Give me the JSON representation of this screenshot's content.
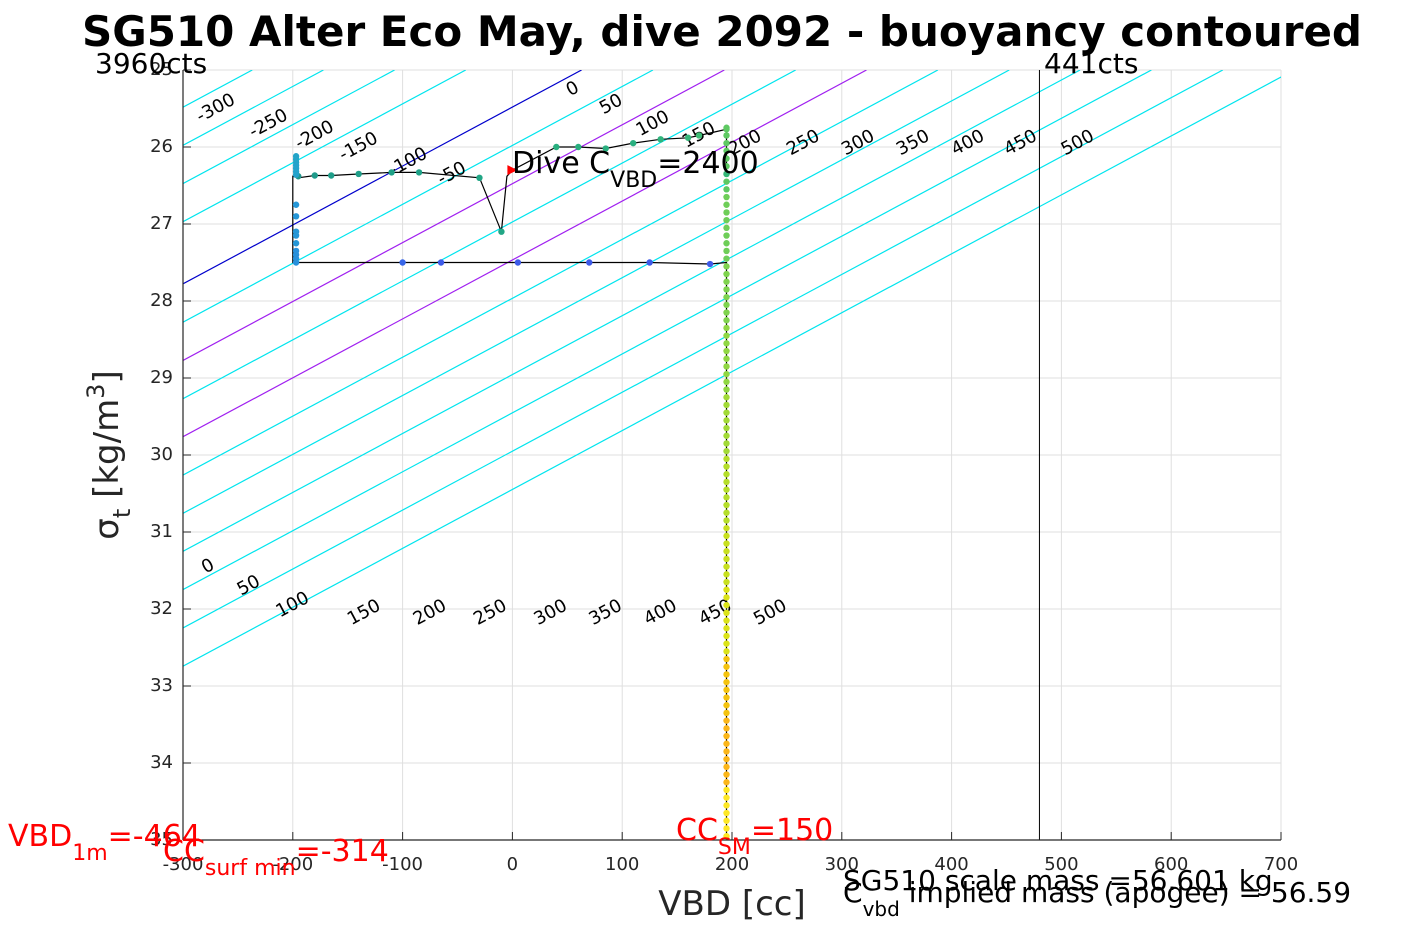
{
  "chart_data": {
    "type": "line",
    "title": "SG510 Alter Eco May, dive 2092 - buoyancy contoured",
    "xlabel": "VBD [cc]",
    "ylabel": {
      "base": "σ",
      "sub": "t",
      "unit": " [kg/m",
      "sup": "3",
      "close": "]"
    },
    "xlim": [
      -300,
      700
    ],
    "ylim": [
      25,
      35
    ],
    "y_reversed": true,
    "grid": true,
    "x_ticks": [
      -300,
      -200,
      -100,
      0,
      100,
      200,
      300,
      400,
      500,
      600,
      700
    ],
    "y_ticks": [
      25,
      26,
      27,
      28,
      29,
      30,
      31,
      32,
      33,
      34,
      35
    ],
    "contour_slope_cc_per_kgm3": 130.7,
    "contours": {
      "levels": [
        -300,
        -250,
        -200,
        -150,
        -100,
        -50,
        0,
        50,
        100,
        150,
        200,
        250,
        300,
        350,
        400,
        450,
        500
      ],
      "x_at_top": [
        -366.5,
        -301.7,
        -236.9,
        -172.1,
        -107.3,
        -42.5,
        63.0,
        128.0,
        193.0,
        258.0,
        322.5,
        387.5,
        452.5,
        517.0,
        582.0,
        647.0,
        712.0
      ],
      "color": "#00e5ee",
      "zero_color": "#0000cc",
      "purple_levels": [
        100,
        200
      ],
      "purple_color": "#a020f0",
      "top_labels": [
        {
          "t": "-300",
          "x": -270,
          "y": 25.5
        },
        {
          "t": "-250",
          "x": -222,
          "y": 25.7
        },
        {
          "t": "-200",
          "x": -180,
          "y": 25.85
        },
        {
          "t": "-150",
          "x": -140,
          "y": 26.0
        },
        {
          "t": "-100",
          "x": -95,
          "y": 26.2
        },
        {
          "t": "-50",
          "x": -55,
          "y": 26.35
        },
        {
          "t": "0",
          "x": 55,
          "y": 25.25
        },
        {
          "t": "50",
          "x": 90,
          "y": 25.45
        },
        {
          "t": "100",
          "x": 128,
          "y": 25.7
        },
        {
          "t": "150",
          "x": 170,
          "y": 25.85
        },
        {
          "t": "200",
          "x": 212,
          "y": 25.95
        },
        {
          "t": "250",
          "x": 265,
          "y": 25.95
        },
        {
          "t": "300",
          "x": 315,
          "y": 25.95
        },
        {
          "t": "350",
          "x": 365,
          "y": 25.95
        },
        {
          "t": "400",
          "x": 415,
          "y": 25.95
        },
        {
          "t": "450",
          "x": 463,
          "y": 25.95
        },
        {
          "t": "500",
          "x": 515,
          "y": 25.95
        }
      ],
      "bottom_labels": [
        {
          "t": "0",
          "x": -277,
          "y": 31.45
        },
        {
          "t": "50",
          "x": -240,
          "y": 31.7
        },
        {
          "t": "100",
          "x": -200,
          "y": 31.95
        },
        {
          "t": "150",
          "x": -135,
          "y": 32.05
        },
        {
          "t": "200",
          "x": -75,
          "y": 32.05
        },
        {
          "t": "250",
          "x": -20,
          "y": 32.05
        },
        {
          "t": "300",
          "x": 35,
          "y": 32.05
        },
        {
          "t": "350",
          "x": 85,
          "y": 32.05
        },
        {
          "t": "400",
          "x": 135,
          "y": 32.05
        },
        {
          "t": "450",
          "x": 185,
          "y": 32.05
        },
        {
          "t": "500",
          "x": 235,
          "y": 32.05
        }
      ]
    },
    "dive_trace": [
      {
        "x": 195,
        "y": 26.35
      },
      {
        "x": 195,
        "y": 25.77
      },
      {
        "x": 170,
        "y": 25.85
      },
      {
        "x": 160,
        "y": 25.88
      },
      {
        "x": 135,
        "y": 25.9
      },
      {
        "x": 110,
        "y": 25.95
      },
      {
        "x": 85,
        "y": 26.02
      },
      {
        "x": 60,
        "y": 26.0
      },
      {
        "x": 40,
        "y": 26.0
      },
      {
        "x": 0,
        "y": 26.3
      },
      {
        "x": -5,
        "y": 26.38
      },
      {
        "x": -10,
        "y": 27.1
      },
      {
        "x": -30,
        "y": 26.4
      },
      {
        "x": -85,
        "y": 26.33
      },
      {
        "x": -110,
        "y": 26.33
      },
      {
        "x": -140,
        "y": 26.35
      },
      {
        "x": -165,
        "y": 26.37
      },
      {
        "x": -180,
        "y": 26.37
      },
      {
        "x": -195,
        "y": 26.4
      },
      {
        "x": -200,
        "y": 26.38
      },
      {
        "x": -200,
        "y": 27.5
      },
      {
        "x": -100,
        "y": 27.5
      },
      {
        "x": -65,
        "y": 27.5
      },
      {
        "x": 5,
        "y": 27.5
      },
      {
        "x": 70,
        "y": 27.5
      },
      {
        "x": 125,
        "y": 27.5
      },
      {
        "x": 180,
        "y": 27.52
      },
      {
        "x": 195,
        "y": 27.5
      },
      {
        "x": 195,
        "y": 35.0
      }
    ],
    "dive_points": [
      {
        "x": 195,
        "y": 26.35,
        "c": "#35b779"
      },
      {
        "x": 195,
        "y": 25.77,
        "c": "#5ec962"
      },
      {
        "x": 170,
        "y": 25.85,
        "c": "#3dbc74"
      },
      {
        "x": 160,
        "y": 25.88,
        "c": "#35b779"
      },
      {
        "x": 135,
        "y": 25.9,
        "c": "#2fb47c"
      },
      {
        "x": 110,
        "y": 25.95,
        "c": "#29af7f"
      },
      {
        "x": 85,
        "y": 26.02,
        "c": "#29af7f"
      },
      {
        "x": 60,
        "y": 26.0,
        "c": "#29af7f"
      },
      {
        "x": 40,
        "y": 26.0,
        "c": "#29af7f"
      },
      {
        "x": -30,
        "y": 26.4,
        "c": "#21a685"
      },
      {
        "x": -10,
        "y": 27.1,
        "c": "#21a685"
      },
      {
        "x": -85,
        "y": 26.33,
        "c": "#1fa187"
      },
      {
        "x": -110,
        "y": 26.33,
        "c": "#1fa187"
      },
      {
        "x": -140,
        "y": 26.35,
        "c": "#1f9e89"
      },
      {
        "x": -165,
        "y": 26.37,
        "c": "#1f9e89"
      },
      {
        "x": -180,
        "y": 26.37,
        "c": "#1f9a8a"
      },
      {
        "x": -195,
        "y": 26.38,
        "c": "#1f968b"
      },
      {
        "x": -197,
        "y": 26.12,
        "c": "#22a4c8"
      },
      {
        "x": -197,
        "y": 26.16,
        "c": "#22a4c8"
      },
      {
        "x": -197,
        "y": 26.2,
        "c": "#22a4c8"
      },
      {
        "x": -197,
        "y": 26.24,
        "c": "#23a2cb"
      },
      {
        "x": -197,
        "y": 26.28,
        "c": "#23a2cb"
      },
      {
        "x": -197,
        "y": 26.32,
        "c": "#23a2cb"
      },
      {
        "x": -197,
        "y": 26.36,
        "c": "#23a2cb"
      },
      {
        "x": -197,
        "y": 26.75,
        "c": "#2596d6"
      },
      {
        "x": -197,
        "y": 26.9,
        "c": "#2596d6"
      },
      {
        "x": -197,
        "y": 27.1,
        "c": "#2596d6"
      },
      {
        "x": -197,
        "y": 27.15,
        "c": "#2596d6"
      },
      {
        "x": -197,
        "y": 27.25,
        "c": "#2596d6"
      },
      {
        "x": -197,
        "y": 27.35,
        "c": "#2790db"
      },
      {
        "x": -197,
        "y": 27.4,
        "c": "#2790db"
      },
      {
        "x": -197,
        "y": 27.45,
        "c": "#2790db"
      },
      {
        "x": -197,
        "y": 27.5,
        "c": "#2790db"
      },
      {
        "x": -100,
        "y": 27.5,
        "c": "#3866e8"
      },
      {
        "x": -65,
        "y": 27.5,
        "c": "#3d5ae8"
      },
      {
        "x": 5,
        "y": 27.5,
        "c": "#3d5ae8"
      },
      {
        "x": 70,
        "y": 27.5,
        "c": "#3d5ae8"
      },
      {
        "x": 125,
        "y": 27.5,
        "c": "#3d5ae8"
      },
      {
        "x": 180,
        "y": 27.52,
        "c": "#3d5ae8"
      }
    ],
    "dive_column": {
      "x": 195,
      "y_start": 25.75,
      "y_end": 35.0,
      "step": 0.1,
      "colors": [
        "#5ec962",
        "#6ece58",
        "#7fd34e",
        "#90d743",
        "#a2da37",
        "#b5de2b",
        "#c8e020",
        "#dbe319",
        "#f4c30f",
        "#fbb61a",
        "#fde725"
      ]
    },
    "marker": {
      "x": 0,
      "y": 26.3,
      "color": "#ff0000"
    },
    "vertical_line_x": 480,
    "annotations": {
      "left_cts": "3960cts",
      "right_cts": "441cts",
      "dive_c": {
        "pre": "Dive C",
        "sub": "VBD",
        "post": "=2400"
      },
      "vbd_1m": {
        "pre": "VBD",
        "sub": "1m",
        "post": "=-464"
      },
      "cc_surf": {
        "pre": "CC",
        "sub": "surf min",
        "post": "=-314"
      },
      "cc_sm": {
        "pre": "CC",
        "sub": "SM",
        "post": "=150"
      },
      "scale_mass": "SG510 scale mass =56.601 kg",
      "implied_mass": {
        "pre": "C",
        "sub": "vbd",
        "post": " implied mass (apogee) = 56.59"
      }
    },
    "colors": {
      "red_text": "#ff0000",
      "grid": "#dfdfdf",
      "axis": "#262626"
    }
  }
}
